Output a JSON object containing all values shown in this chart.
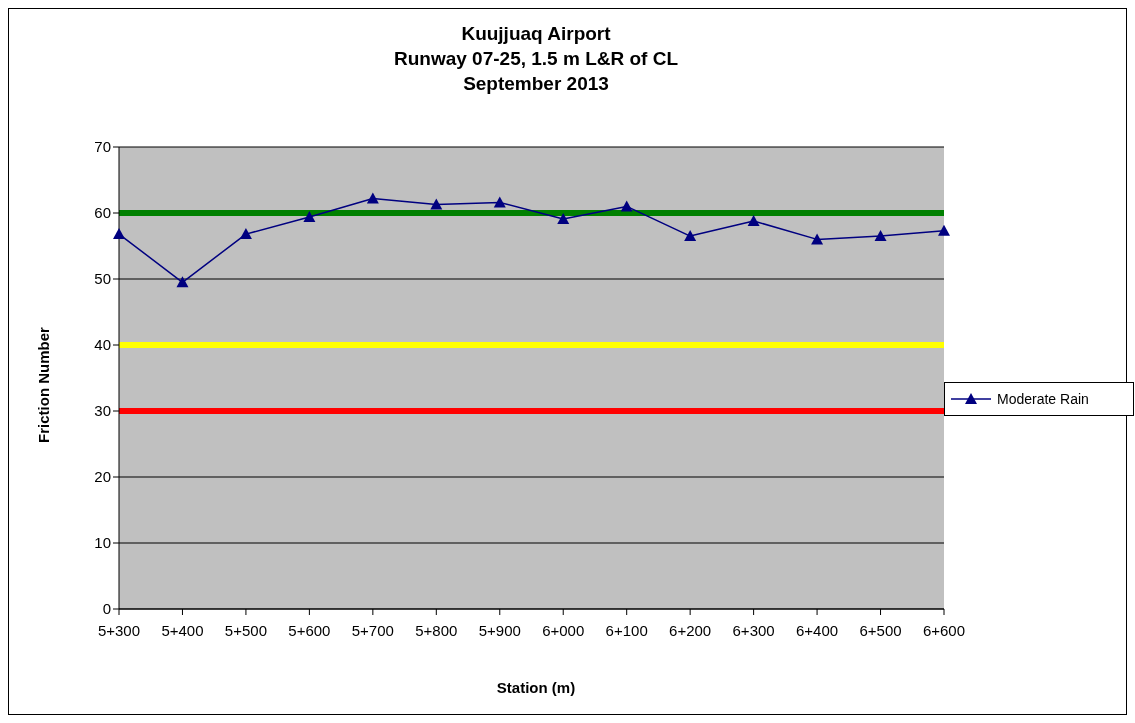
{
  "chart_data": {
    "type": "line",
    "title": "Kuujjuaq Airport\nRunway 07-25, 1.5 m L&R of CL\nSeptember 2013",
    "xlabel": "Station (m)",
    "ylabel": "Friction Number",
    "categories": [
      "5+300",
      "5+400",
      "5+500",
      "5+600",
      "5+700",
      "5+800",
      "5+900",
      "6+000",
      "6+100",
      "6+200",
      "6+300",
      "6+400",
      "6+500",
      "6+600"
    ],
    "series": [
      {
        "name": "Moderate Rain",
        "color": "#000080",
        "values": [
          56.8,
          49.5,
          56.8,
          59.4,
          62.2,
          61.3,
          61.6,
          59.1,
          61.0,
          56.5,
          58.8,
          56.0,
          56.5,
          57.3
        ]
      }
    ],
    "ylim": [
      0,
      70
    ],
    "yticks": [
      0,
      10,
      20,
      30,
      40,
      50,
      60,
      70
    ],
    "grid": "y",
    "legend": "right",
    "marker": "triangle",
    "line_style": "solid",
    "ref_lines": [
      {
        "axis": "y",
        "value": 60,
        "color": "#008000"
      },
      {
        "axis": "y",
        "value": 40,
        "color": "#ffff00"
      },
      {
        "axis": "y",
        "value": 30,
        "color": "#ff0000"
      }
    ]
  }
}
